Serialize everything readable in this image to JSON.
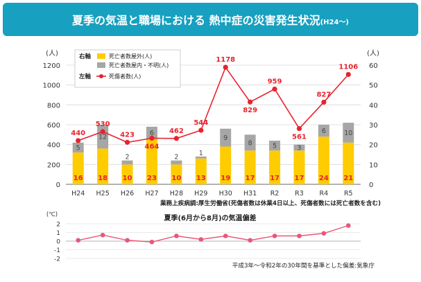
{
  "header": {
    "title_main": "夏季の気温と職場における ",
    "title_strong": "熱中症の災害発生状況",
    "title_suffix": "(H24～)"
  },
  "chart_data": [
    {
      "type": "bar",
      "categories": [
        "H24",
        "H25",
        "H26",
        "H27",
        "H28",
        "H29",
        "H30",
        "H31",
        "R2",
        "R3",
        "R4",
        "R5"
      ],
      "right_axis": {
        "label": "(人)",
        "side_label": "右軸",
        "ticks": [
          0,
          10,
          20,
          30,
          40,
          50,
          60
        ],
        "ylim": [
          0,
          60
        ]
      },
      "left_axis": {
        "label": "(人)",
        "side_label": "左軸",
        "ticks": [
          0,
          200,
          400,
          600,
          800,
          1000,
          1200
        ],
        "ylim": [
          0,
          1200
        ]
      },
      "series": [
        {
          "name": "死亡者数屋外(人)",
          "axis": "right",
          "kind": "bar-stack",
          "color": "#ffcc00",
          "values": [
            16,
            18,
            10,
            23,
            10,
            13,
            19,
            17,
            17,
            17,
            24,
            21
          ]
        },
        {
          "name": "死亡者数屋内・不明(人)",
          "axis": "right",
          "kind": "bar-stack",
          "color": "#a6a6a6",
          "values": [
            5,
            12,
            2,
            6,
            2,
            1,
            9,
            8,
            5,
            3,
            6,
            10
          ]
        },
        {
          "name": "死傷者数(人)",
          "axis": "left",
          "kind": "line",
          "color": "#e8232e",
          "values": [
            440,
            530,
            423,
            464,
            462,
            544,
            1178,
            829,
            959,
            561,
            827,
            1106
          ]
        }
      ],
      "source_note": "業務上疾病調:厚生労働省(死傷者数は休業4日以上、死傷者数には死亡者数を含む)"
    },
    {
      "type": "line",
      "title": "夏季(6月から8月)の気温偏差",
      "categories": [
        "H24",
        "H25",
        "H26",
        "H27",
        "H28",
        "H29",
        "H30",
        "H31",
        "R2",
        "R3",
        "R4",
        "R5"
      ],
      "ylabel": "(℃)",
      "ticks": [
        -2,
        -1,
        0,
        1,
        2
      ],
      "ylim": [
        -2,
        2
      ],
      "series": [
        {
          "name": "",
          "color": "#e8577a",
          "values": [
            0.1,
            0.7,
            0.1,
            -0.1,
            0.6,
            0.2,
            0.6,
            0.1,
            0.6,
            0.6,
            0.9,
            1.8
          ]
        }
      ],
      "source_note": "平成3年～令和2年の30年間を基準とした偏差:気象庁"
    }
  ]
}
